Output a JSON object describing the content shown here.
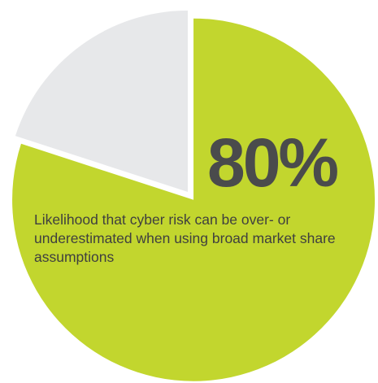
{
  "chart_data": {
    "type": "pie",
    "slices": [
      {
        "label": "Likelihood that cyber risk can be over- or underestimated when using broad market share assumptions",
        "value": 80,
        "color": "#c2d62e",
        "exploded": true
      },
      {
        "label": "",
        "value": 20,
        "color": "#e7e8ea",
        "exploded": false
      }
    ],
    "big_value": "80%",
    "caption": "Likelihood that cyber risk can be over- or underestimated when using broad market share assumptions"
  }
}
